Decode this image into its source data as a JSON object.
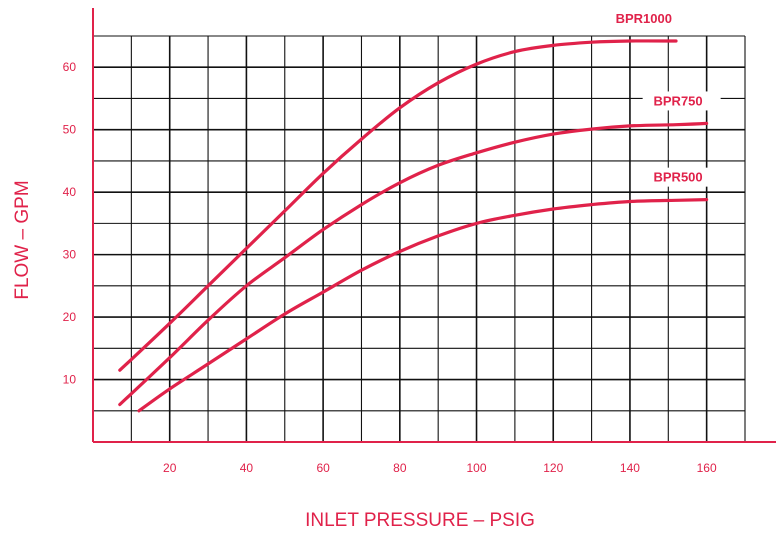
{
  "chart_data": {
    "type": "line",
    "title": "",
    "xlabel": "INLET PRESSURE – PSIG",
    "ylabel": "FLOW – GPM",
    "xlim": [
      0,
      170
    ],
    "ylim": [
      0,
      65
    ],
    "x_ticks": [
      20,
      40,
      60,
      80,
      100,
      120,
      140,
      160
    ],
    "y_ticks": [
      10,
      20,
      30,
      40,
      50,
      60
    ],
    "x_tick_labels": [
      "20",
      "40",
      "60",
      "80",
      "100",
      "120",
      "140",
      "160"
    ],
    "y_tick_labels": [
      "10",
      "20",
      "30",
      "40",
      "50",
      "60"
    ],
    "grid": true,
    "legend": "labels at line ends",
    "colors": {
      "line": "#e0224a",
      "grid": "#111111",
      "axis": "#e0224a",
      "text": "#e0224a"
    },
    "series": [
      {
        "name": "BPR1000",
        "x": [
          7,
          20,
          30,
          40,
          50,
          60,
          70,
          80,
          90,
          100,
          110,
          120,
          130,
          140,
          152
        ],
        "y": [
          11.5,
          19,
          25,
          31,
          37,
          43,
          48.5,
          53.5,
          57.5,
          60.5,
          62.5,
          63.5,
          64,
          64.2,
          64.2
        ]
      },
      {
        "name": "BPR750",
        "x": [
          7,
          20,
          30,
          40,
          50,
          60,
          70,
          80,
          90,
          100,
          110,
          120,
          130,
          140,
          152,
          160
        ],
        "y": [
          6,
          13.5,
          19.5,
          25,
          29.5,
          34,
          38,
          41.5,
          44.3,
          46.3,
          48,
          49.3,
          50.1,
          50.6,
          50.8,
          51
        ]
      },
      {
        "name": "BPR500",
        "x": [
          12,
          20,
          30,
          40,
          50,
          60,
          70,
          80,
          90,
          100,
          110,
          120,
          130,
          140,
          152,
          160
        ],
        "y": [
          5,
          8.5,
          12.5,
          16.5,
          20.5,
          24,
          27.5,
          30.5,
          33,
          35,
          36.3,
          37.3,
          38,
          38.5,
          38.7,
          38.8
        ]
      }
    ]
  }
}
